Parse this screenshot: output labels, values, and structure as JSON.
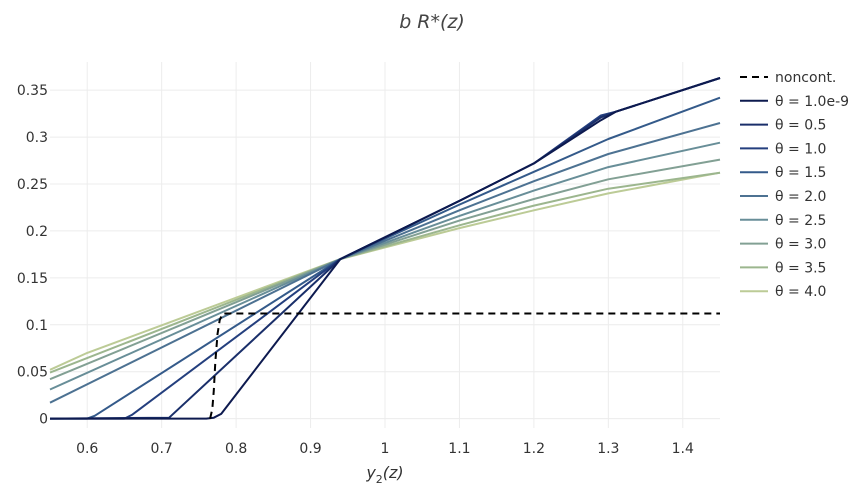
{
  "chart_data": {
    "type": "line",
    "title": "b R*(z)",
    "xlabel": "y2(z)",
    "ylabel": "",
    "xlim": [
      0.55,
      1.45
    ],
    "ylim": [
      -0.01,
      0.38
    ],
    "x_ticks": [
      0.6,
      0.7,
      0.8,
      0.9,
      1,
      1.1,
      1.2,
      1.3,
      1.4
    ],
    "x_tick_labels": [
      "0.6",
      "0.7",
      "0.8",
      "0.9",
      "1",
      "1.1",
      "1.2",
      "1.3",
      "1.4"
    ],
    "y_ticks": [
      0,
      0.05,
      0.1,
      0.15,
      0.2,
      0.25,
      0.3,
      0.35
    ],
    "y_tick_labels": [
      "0",
      "0.05",
      "0.1",
      "0.15",
      "0.2",
      "0.25",
      "0.3",
      "0.35"
    ],
    "grid": true,
    "legend_position": "right",
    "series": [
      {
        "name": "noncont.",
        "color": "#000000",
        "dash": true,
        "x": [
          0.765,
          0.768,
          0.77,
          0.772,
          0.775,
          0.778,
          0.782,
          0.8,
          1.0,
          1.2,
          1.45
        ],
        "y": [
          0.0,
          0.01,
          0.03,
          0.06,
          0.09,
          0.105,
          0.112,
          0.112,
          0.112,
          0.112,
          0.112
        ]
      },
      {
        "name": "θ = 1.0e-9",
        "color": "#0d1a4f",
        "dash": false,
        "x": [
          0.55,
          0.76,
          0.77,
          0.78,
          0.94,
          1.1,
          1.2,
          1.29,
          1.31,
          1.45
        ],
        "y": [
          0.0,
          0.0,
          0.001,
          0.005,
          0.17,
          0.232,
          0.272,
          0.318,
          0.327,
          0.363
        ]
      },
      {
        "name": "θ = 0.5",
        "color": "#1a2f6a",
        "dash": false,
        "x": [
          0.55,
          0.71,
          0.94,
          1.1,
          1.2,
          1.29,
          1.31,
          1.45
        ],
        "y": [
          0.0,
          0.001,
          0.17,
          0.232,
          0.272,
          0.321,
          0.327,
          0.363
        ]
      },
      {
        "name": "θ = 1.0",
        "color": "#243f7e",
        "dash": false,
        "x": [
          0.55,
          0.65,
          0.66,
          0.94,
          1.1,
          1.2,
          1.29,
          1.31,
          1.45
        ],
        "y": [
          0.0,
          0.0,
          0.004,
          0.17,
          0.232,
          0.272,
          0.323,
          0.327,
          0.363
        ]
      },
      {
        "name": "θ = 1.5",
        "color": "#345a8a",
        "dash": false,
        "x": [
          0.55,
          0.6,
          0.61,
          0.94,
          1.1,
          1.2,
          1.3,
          1.45
        ],
        "y": [
          0.0,
          0.0,
          0.003,
          0.17,
          0.228,
          0.263,
          0.298,
          0.342
        ]
      },
      {
        "name": "θ = 2.0",
        "color": "#4d7292",
        "dash": false,
        "x": [
          0.55,
          0.94,
          1.1,
          1.2,
          1.3,
          1.45
        ],
        "y": [
          0.017,
          0.17,
          0.222,
          0.253,
          0.282,
          0.315
        ]
      },
      {
        "name": "θ = 2.5",
        "color": "#688e98",
        "dash": false,
        "x": [
          0.55,
          0.94,
          1.1,
          1.2,
          1.3,
          1.45
        ],
        "y": [
          0.031,
          0.17,
          0.216,
          0.243,
          0.268,
          0.294
        ]
      },
      {
        "name": "θ = 3.0",
        "color": "#82a094",
        "dash": false,
        "x": [
          0.55,
          0.94,
          1.1,
          1.2,
          1.3,
          1.45
        ],
        "y": [
          0.042,
          0.17,
          0.211,
          0.234,
          0.255,
          0.276
        ]
      },
      {
        "name": "θ = 3.5",
        "color": "#9cb68e",
        "dash": false,
        "x": [
          0.55,
          0.94,
          1.1,
          1.2,
          1.3,
          1.45
        ],
        "y": [
          0.049,
          0.17,
          0.206,
          0.227,
          0.245,
          0.262
        ]
      },
      {
        "name": "θ = 4.0",
        "color": "#bccb96",
        "dash": false,
        "x": [
          0.55,
          0.6,
          0.94,
          1.1,
          1.2,
          1.3,
          1.45
        ],
        "y": [
          0.052,
          0.07,
          0.17,
          0.203,
          0.222,
          0.24,
          0.262
        ]
      }
    ]
  }
}
